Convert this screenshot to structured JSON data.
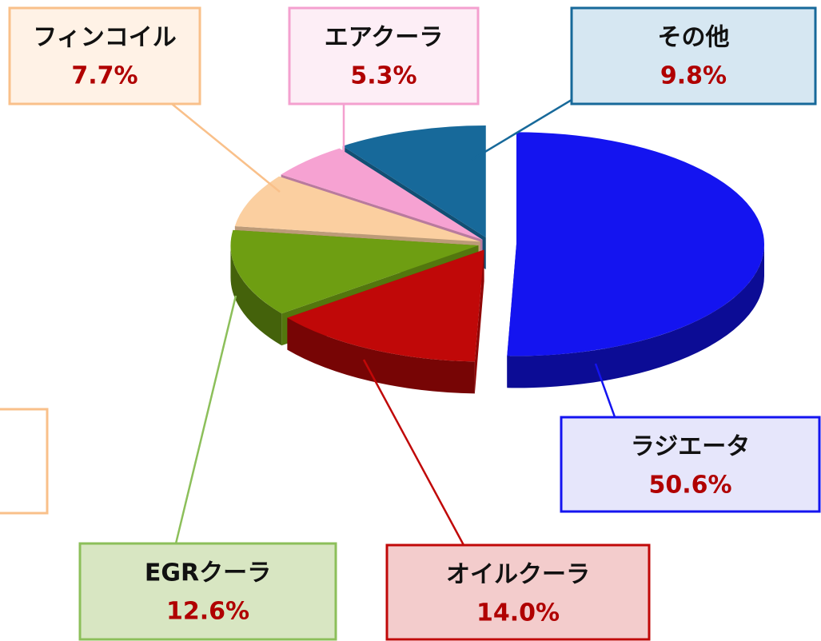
{
  "chart_data": {
    "type": "pie",
    "categories": [
      "ラジエータ",
      "オイルクーラ",
      "EGRクーラ",
      "フィンコイル",
      "エアクーラ",
      "その他"
    ],
    "values": [
      50.6,
      14.0,
      12.6,
      7.7,
      5.3,
      9.8
    ],
    "value_labels": [
      "50.6%",
      "14.0%",
      "12.6%",
      "7.7%",
      "5.3%",
      "9.8%"
    ],
    "colors": [
      "#1414f0",
      "#c00808",
      "#6e9e12",
      "#fbcfa0",
      "#f6a2d2",
      "#17699a"
    ]
  }
}
